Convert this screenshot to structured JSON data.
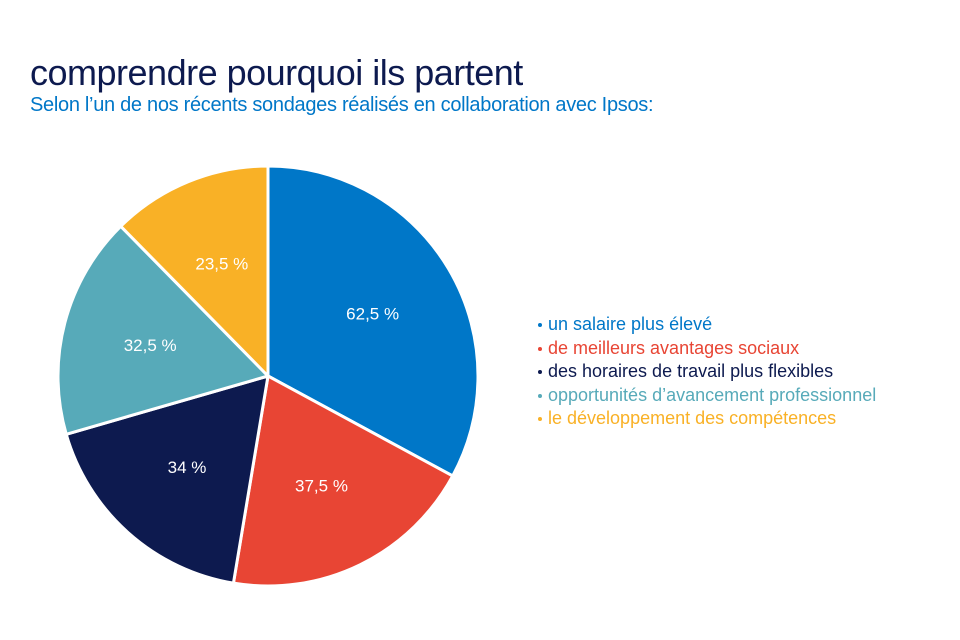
{
  "chart_data": {
    "type": "pie",
    "title": "comprendre pourquoi ils partent",
    "subtitle": "Selon l’un de nos récents sondages réalisés en collaboration avec Ipsos:",
    "legend_position": "right",
    "slices": [
      {
        "label": "un salaire plus élevé",
        "value": 62.5,
        "value_label": "62,5 %",
        "color": "#0077c8"
      },
      {
        "label": "de meilleurs avantages sociaux",
        "value": 37.5,
        "value_label": "37,5 %",
        "color": "#e84534"
      },
      {
        "label": "des horaires de travail plus flexibles",
        "value": 34,
        "value_label": "34 %",
        "color": "#0d1a4f"
      },
      {
        "label": "opportunités d’avancement professionnel",
        "value": 32.5,
        "value_label": "32,5 %",
        "color": "#57aab9"
      },
      {
        "label": "le développement des compétences",
        "value": 23.5,
        "value_label": "23,5 %",
        "color": "#f9b126"
      }
    ]
  }
}
